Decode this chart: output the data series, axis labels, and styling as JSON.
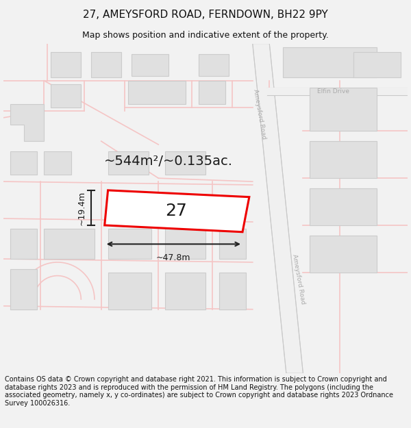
{
  "title": "27, AMEYSFORD ROAD, FERNDOWN, BH22 9PY",
  "subtitle": "Map shows position and indicative extent of the property.",
  "footer": "Contains OS data © Crown copyright and database right 2021. This information is subject to Crown copyright and database rights 2023 and is reproduced with the permission of HM Land Registry. The polygons (including the associated geometry, namely x, y co-ordinates) are subject to Crown copyright and database rights 2023 Ordnance Survey 100026316.",
  "area_label": "~544m²/~0.135ac.",
  "width_label": "~47.8m",
  "height_label": "~19.4m",
  "plot_number": "27",
  "bg_color": "#f2f2f2",
  "map_bg": "#ffffff",
  "road_color": "#f5c5c5",
  "road_bg": "#f0f0f0",
  "building_fill": "#e0e0e0",
  "building_stroke": "#cccccc",
  "plot_fill": "#ffffff",
  "plot_stroke": "#ee0000",
  "dim_color": "#222222",
  "road_label_color": "#aaaaaa",
  "title_fontsize": 11,
  "subtitle_fontsize": 9,
  "footer_fontsize": 7.0,
  "area_fontsize": 14,
  "plot_num_fontsize": 18,
  "dim_fontsize": 9
}
